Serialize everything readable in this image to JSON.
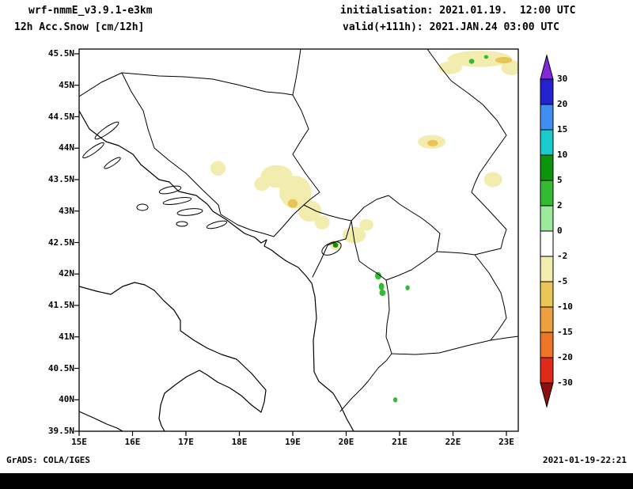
{
  "header": {
    "model": "wrf-nmmE_v3.9.1-e3km",
    "field": "12h Acc.Snow [cm/12h]",
    "init": "initialisation: 2021.01.19.  12:00 UTC",
    "valid": "valid(+111h): 2021.JAN.24 03:00 UTC"
  },
  "footer": {
    "left": "GrADS: COLA/IGES",
    "right": "2021-01-19-22:21"
  },
  "chart_data": {
    "type": "heatmap",
    "title": "12h Acc.Snow [cm/12h]",
    "model": "wrf-nmmE_v3.9.1-e3km",
    "units": "cm/12h",
    "projection": "lat-lon",
    "region": "Balkans / Adriatic",
    "lon_range": [
      15.0,
      23.25
    ],
    "lat_range": [
      39.5,
      45.5
    ],
    "grid": false,
    "x_ticks": [
      "15E",
      "16E",
      "17E",
      "18E",
      "19E",
      "20E",
      "21E",
      "22E",
      "23E"
    ],
    "y_ticks": [
      "45.5N",
      "45N",
      "44.5N",
      "44N",
      "43.5N",
      "43N",
      "42.5N",
      "42N",
      "41.5N",
      "41N",
      "40.5N",
      "40N",
      "39.5N"
    ],
    "colorbar": {
      "position": "right",
      "orientation": "vertical",
      "boundaries": [
        "30",
        "20",
        "15",
        "10",
        "5",
        "2",
        "0",
        "-2",
        "-5",
        "-10",
        "-15",
        "-20",
        "-30"
      ],
      "segment_colors": [
        "#2222cf",
        "#3f8ff2",
        "#19cbcb",
        "#0e930e",
        "#33bb33",
        "#9ce89c",
        "#ffffff",
        "#f2edae",
        "#e9c557",
        "#eda03f",
        "#ee7428",
        "#df2a1a"
      ],
      "arrow_top_color": "#8426d9",
      "arrow_bottom_color": "#8c1010"
    },
    "palette": {
      "-10 to -5": "#e9c557",
      "-5 to -2": "#f2edae",
      "0 to 2": "#9ce89c",
      "2 to 5": "#33bb33",
      "5 to 10": "#0e930e"
    },
    "regions": [
      {
        "lon": 17.6,
        "lat": 43.68,
        "rx": 0.14,
        "ry": 0.12,
        "value": "-5 to -2"
      },
      {
        "lon": 18.7,
        "lat": 43.55,
        "rx": 0.3,
        "ry": 0.18,
        "value": "-5 to -2"
      },
      {
        "lon": 18.42,
        "lat": 43.43,
        "rx": 0.14,
        "ry": 0.11,
        "value": "-5 to -2"
      },
      {
        "lon": 19.05,
        "lat": 43.3,
        "rx": 0.3,
        "ry": 0.26,
        "value": "-5 to -2"
      },
      {
        "lon": 19.32,
        "lat": 43.0,
        "rx": 0.22,
        "ry": 0.17,
        "value": "-5 to -2"
      },
      {
        "lon": 19.55,
        "lat": 42.82,
        "rx": 0.14,
        "ry": 0.11,
        "value": "-5 to -2"
      },
      {
        "lon": 19.0,
        "lat": 43.12,
        "rx": 0.09,
        "ry": 0.07,
        "value": "-10 to -5"
      },
      {
        "lon": 19.8,
        "lat": 42.46,
        "rx": 0.1,
        "ry": 0.08,
        "value": "-5 to -2"
      },
      {
        "lon": 19.8,
        "lat": 42.46,
        "rx": 0.05,
        "ry": 0.04,
        "value": "5 to 10"
      },
      {
        "lon": 20.15,
        "lat": 42.62,
        "rx": 0.22,
        "ry": 0.13,
        "value": "-5 to -2"
      },
      {
        "lon": 20.38,
        "lat": 42.78,
        "rx": 0.13,
        "ry": 0.09,
        "value": "-5 to -2"
      },
      {
        "lon": 20.6,
        "lat": 41.97,
        "rx": 0.06,
        "ry": 0.06,
        "value": "2 to 5"
      },
      {
        "lon": 20.66,
        "lat": 41.8,
        "rx": 0.05,
        "ry": 0.06,
        "value": "2 to 5"
      },
      {
        "lon": 20.68,
        "lat": 41.7,
        "rx": 0.06,
        "ry": 0.05,
        "value": "2 to 5"
      },
      {
        "lon": 21.15,
        "lat": 41.78,
        "rx": 0.04,
        "ry": 0.04,
        "value": "2 to 5"
      },
      {
        "lon": 22.5,
        "lat": 45.42,
        "rx": 0.6,
        "ry": 0.13,
        "value": "-5 to -2"
      },
      {
        "lon": 21.95,
        "lat": 45.28,
        "rx": 0.22,
        "ry": 0.1,
        "value": "-5 to -2"
      },
      {
        "lon": 23.1,
        "lat": 45.28,
        "rx": 0.2,
        "ry": 0.12,
        "value": "-5 to -2"
      },
      {
        "lon": 22.95,
        "lat": 45.4,
        "rx": 0.16,
        "ry": 0.05,
        "value": "-10 to -5"
      },
      {
        "lon": 22.35,
        "lat": 45.38,
        "rx": 0.05,
        "ry": 0.04,
        "value": "2 to 5"
      },
      {
        "lon": 22.62,
        "lat": 45.45,
        "rx": 0.04,
        "ry": 0.03,
        "value": "2 to 5"
      },
      {
        "lon": 21.6,
        "lat": 44.1,
        "rx": 0.26,
        "ry": 0.11,
        "value": "-5 to -2"
      },
      {
        "lon": 21.62,
        "lat": 44.08,
        "rx": 0.1,
        "ry": 0.05,
        "value": "-10 to -5"
      },
      {
        "lon": 22.75,
        "lat": 43.5,
        "rx": 0.17,
        "ry": 0.12,
        "value": "-5 to -2"
      },
      {
        "lon": 20.92,
        "lat": 40.0,
        "rx": 0.04,
        "ry": 0.04,
        "value": "2 to 5"
      }
    ]
  }
}
